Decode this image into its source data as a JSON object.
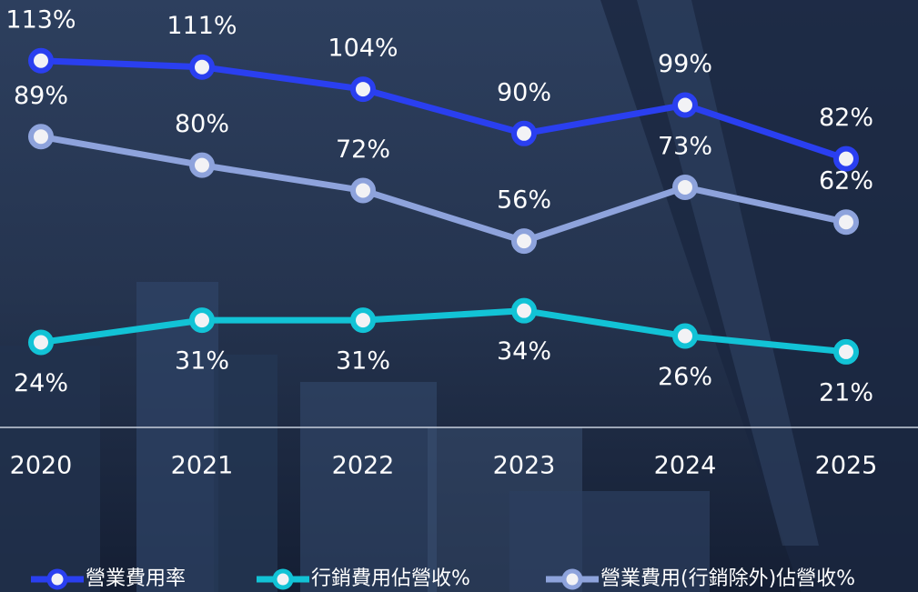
{
  "chart_data": {
    "type": "line",
    "categories": [
      "2020",
      "2021",
      "2022",
      "2023",
      "2024",
      "2025"
    ],
    "series": [
      {
        "name": "營業費用率",
        "color": "#2a3ff0",
        "values": [
          113,
          111,
          104,
          90,
          99,
          82
        ],
        "value_labels": [
          "113%",
          "111%",
          "104%",
          "90%",
          "99%",
          "82%"
        ]
      },
      {
        "name": "行銷費用佔營收%",
        "color": "#12c3d6",
        "values": [
          24,
          31,
          31,
          34,
          26,
          21
        ],
        "value_labels": [
          "24%",
          "31%",
          "31%",
          "34%",
          "26%",
          "21%"
        ]
      },
      {
        "name": "營業費用(行銷除外)佔營收%",
        "color": "#8ea3dc",
        "values": [
          89,
          80,
          72,
          56,
          73,
          62
        ],
        "value_labels": [
          "89%",
          "80%",
          "72%",
          "56%",
          "73%",
          "62%"
        ]
      }
    ],
    "legend": "bottom"
  }
}
